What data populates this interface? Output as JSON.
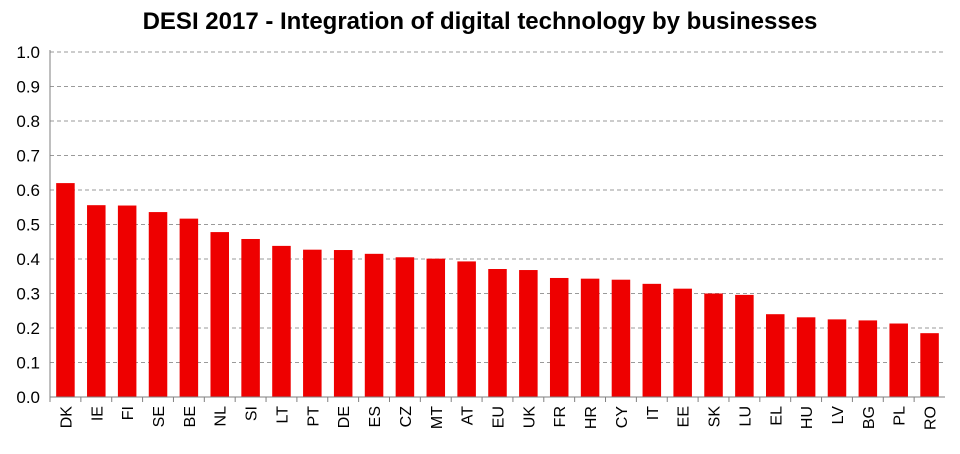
{
  "chart_data": {
    "type": "bar",
    "title": "DESI 2017 - Integration of digital technology by businesses",
    "xlabel": "",
    "ylabel": "",
    "ylim": [
      0,
      1.0
    ],
    "yticks": [
      "0.0",
      "0.1",
      "0.2",
      "0.3",
      "0.4",
      "0.5",
      "0.6",
      "0.7",
      "0.8",
      "0.9",
      "1.0"
    ],
    "grid": "horizontal dashed",
    "bar_color": "#ee0000",
    "categories": [
      "DK",
      "IE",
      "FI",
      "SE",
      "BE",
      "NL",
      "SI",
      "LT",
      "PT",
      "DE",
      "ES",
      "CZ",
      "MT",
      "AT",
      "EU",
      "UK",
      "FR",
      "HR",
      "CY",
      "IT",
      "EE",
      "SK",
      "LU",
      "EL",
      "HU",
      "LV",
      "BG",
      "PL",
      "RO"
    ],
    "values": [
      0.62,
      0.556,
      0.555,
      0.536,
      0.517,
      0.478,
      0.458,
      0.438,
      0.427,
      0.426,
      0.415,
      0.405,
      0.401,
      0.393,
      0.371,
      0.368,
      0.345,
      0.343,
      0.34,
      0.328,
      0.314,
      0.3,
      0.296,
      0.24,
      0.231,
      0.225,
      0.222,
      0.213,
      0.185
    ]
  }
}
